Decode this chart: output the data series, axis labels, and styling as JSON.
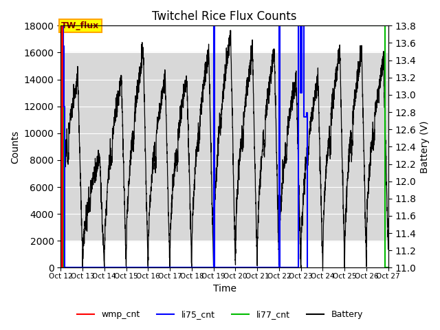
{
  "title": "Twitchel Rice Flux Counts",
  "xlabel": "Time",
  "ylabel_left": "Counts",
  "ylabel_right": "Battery (V)",
  "xlim": [
    0,
    15
  ],
  "ylim_left": [
    0,
    18000
  ],
  "ylim_right": [
    11.0,
    13.8
  ],
  "yticks_left": [
    0,
    2000,
    4000,
    6000,
    8000,
    10000,
    12000,
    14000,
    16000,
    18000
  ],
  "yticks_right": [
    11.0,
    11.2,
    11.4,
    11.6,
    11.8,
    12.0,
    12.2,
    12.4,
    12.6,
    12.8,
    13.0,
    13.2,
    13.4,
    13.6,
    13.8
  ],
  "xtick_labels": [
    "Oct 12",
    "Oct 13",
    "Oct 14",
    "Oct 15",
    "Oct 16",
    "Oct 17",
    "Oct 18",
    "Oct 19",
    "Oct 20",
    "Oct 21",
    "Oct 22",
    "Oct 23",
    "Oct 24",
    "Oct 25",
    "Oct 26",
    "Oct 27"
  ],
  "xtick_positions": [
    0,
    1,
    2,
    3,
    4,
    5,
    6,
    7,
    8,
    9,
    10,
    11,
    12,
    13,
    14,
    15
  ],
  "annotation_text": "TW_flux",
  "bg_band_ymin": 2000,
  "bg_band_ymax": 16000,
  "bg_band_color": "#d8d8d8",
  "wmp_cnt_color": "#ff0000",
  "li75_cnt_color": "#0000ff",
  "li77_cnt_color": "#00bb00",
  "battery_color": "#000000",
  "legend_entries": [
    "wmp_cnt",
    "li75_cnt",
    "li77_cnt",
    "Battery"
  ],
  "battery_peaks": [
    13.2,
    12.3,
    13.2,
    13.5,
    13.2,
    13.2,
    13.5,
    13.7,
    13.5,
    13.5,
    13.2,
    13.2,
    13.5,
    13.5,
    13.4
  ],
  "battery_mins": [
    11.2,
    11.0,
    11.0,
    11.0,
    11.0,
    11.0,
    11.0,
    11.0,
    11.0,
    11.0,
    11.0,
    11.0,
    11.0,
    11.0,
    11.2
  ]
}
